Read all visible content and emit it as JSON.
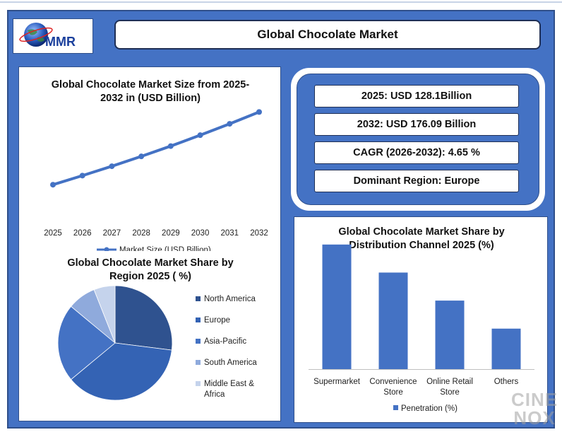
{
  "header": {
    "logo_text": "MMR",
    "title": "Global Chocolate Market"
  },
  "stats": [
    "2025: USD 128.1Billion",
    "2032: USD 176.09 Billion",
    "CAGR (2026-2032): 4.65 %",
    "Dominant Region: Europe"
  ],
  "watermark": {
    "line1": "CINE",
    "line2": "NOX"
  },
  "colors": {
    "frame": "#4472c4",
    "series_line": "#4472c4",
    "bar": "#4472c4",
    "pie": [
      "#2f528f",
      "#3463b4",
      "#4472c4",
      "#8faadc",
      "#c5d3ec"
    ]
  },
  "chart_data": [
    {
      "type": "line",
      "title": "Global Chocolate Market Size from 2025-2032 in (USD Billion)",
      "x": [
        "2025",
        "2026",
        "2027",
        "2028",
        "2029",
        "2030",
        "2031",
        "2032"
      ],
      "series": [
        {
          "name": "Market Size (USD Billion)",
          "values": [
            128.1,
            134.1,
            140.3,
            146.8,
            153.6,
            160.8,
            168.3,
            176.09
          ]
        }
      ],
      "ylim": [
        110,
        180
      ],
      "xlabel": "",
      "ylabel": "",
      "grid": false,
      "legend": "bottom"
    },
    {
      "type": "pie",
      "title": "Global Chocolate Market Share by Region 2025 ( %)",
      "labels": [
        "North America",
        "Europe",
        "Asia-Pacific",
        "South America",
        "Middle East & Africa"
      ],
      "values": [
        27,
        37,
        22,
        8,
        6
      ],
      "legend": "right"
    },
    {
      "type": "bar",
      "title": "Global Chocolate Market Share by Distribution Channel 2025 (%)",
      "categories": [
        "Supermarket",
        "Convenience Store",
        "Online Retail Store",
        "Others"
      ],
      "series": [
        {
          "name": "Penetration (%)",
          "values": [
            40,
            31,
            22,
            13
          ]
        }
      ],
      "ylim": [
        0,
        42
      ],
      "xlabel": "",
      "ylabel": "",
      "grid": false,
      "legend": "bottom"
    }
  ]
}
